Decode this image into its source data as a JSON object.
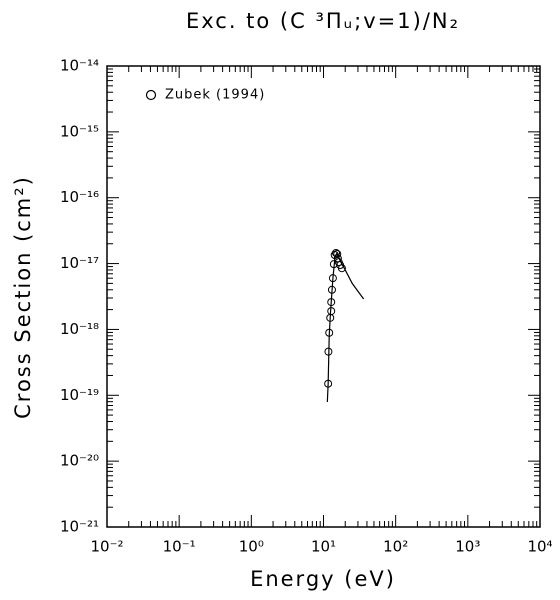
{
  "chart_data": {
    "type": "scatter",
    "title": "Exc. to (C ³Πᵤ;v=1)/N₂",
    "x_label": "Energy (eV)",
    "y_label": "Cross Section (cm²)",
    "log_x": true,
    "log_y": true,
    "xlim": [
      0.01,
      10000
    ],
    "ylim": [
      1e-21,
      1e-14
    ],
    "xticks": [
      {
        "value": 0.01,
        "label": "10⁻²"
      },
      {
        "value": 0.1,
        "label": "10⁻¹"
      },
      {
        "value": 1,
        "label": "10⁰"
      },
      {
        "value": 10,
        "label": "10¹"
      },
      {
        "value": 100,
        "label": "10²"
      },
      {
        "value": 1000,
        "label": "10³"
      },
      {
        "value": 10000,
        "label": "10⁴"
      }
    ],
    "yticks": [
      {
        "value": 1e-21,
        "label": "10⁻²¹"
      },
      {
        "value": 1e-20,
        "label": "10⁻²⁰"
      },
      {
        "value": 1e-19,
        "label": "10⁻¹⁹"
      },
      {
        "value": 1e-18,
        "label": "10⁻¹⁸"
      },
      {
        "value": 1e-17,
        "label": "10⁻¹⁷"
      },
      {
        "value": 1e-16,
        "label": "10⁻¹⁶"
      },
      {
        "value": 1e-15,
        "label": "10⁻¹⁵"
      },
      {
        "value": 1e-14,
        "label": "10⁻¹⁴"
      }
    ],
    "legend_position": "upper left",
    "series": [
      {
        "name": "Zubek (1994)",
        "color": "#000000",
        "x": [
          11.6,
          11.7,
          12.0,
          12.4,
          12.8,
          12.8,
          13.1,
          13.5,
          13.9,
          14.3,
          14.9,
          15.5,
          15.8,
          16.3,
          17.0,
          18.0
        ],
        "values": [
          1.5e-19,
          4.6e-19,
          8.9e-19,
          1.5e-18,
          1.9e-18,
          2.6e-18,
          4e-18,
          6e-18,
          9.8e-18,
          1.35e-17,
          1.45e-17,
          1.4e-17,
          1.2e-17,
          1.05e-17,
          9.5e-18,
          8.5e-18
        ]
      }
    ],
    "fit": {
      "color": "#000000",
      "x": [
        11.3,
        11.6,
        12.0,
        12.5,
        13.5,
        14.5,
        15.5,
        17,
        20,
        25,
        30,
        36
      ],
      "values": [
        7.9e-20,
        1.5e-19,
        8e-19,
        1.8e-18,
        6e-18,
        1.3e-17,
        1.45e-17,
        1.1e-17,
        8e-18,
        5e-18,
        3.8e-18,
        2.9e-18
      ]
    }
  }
}
